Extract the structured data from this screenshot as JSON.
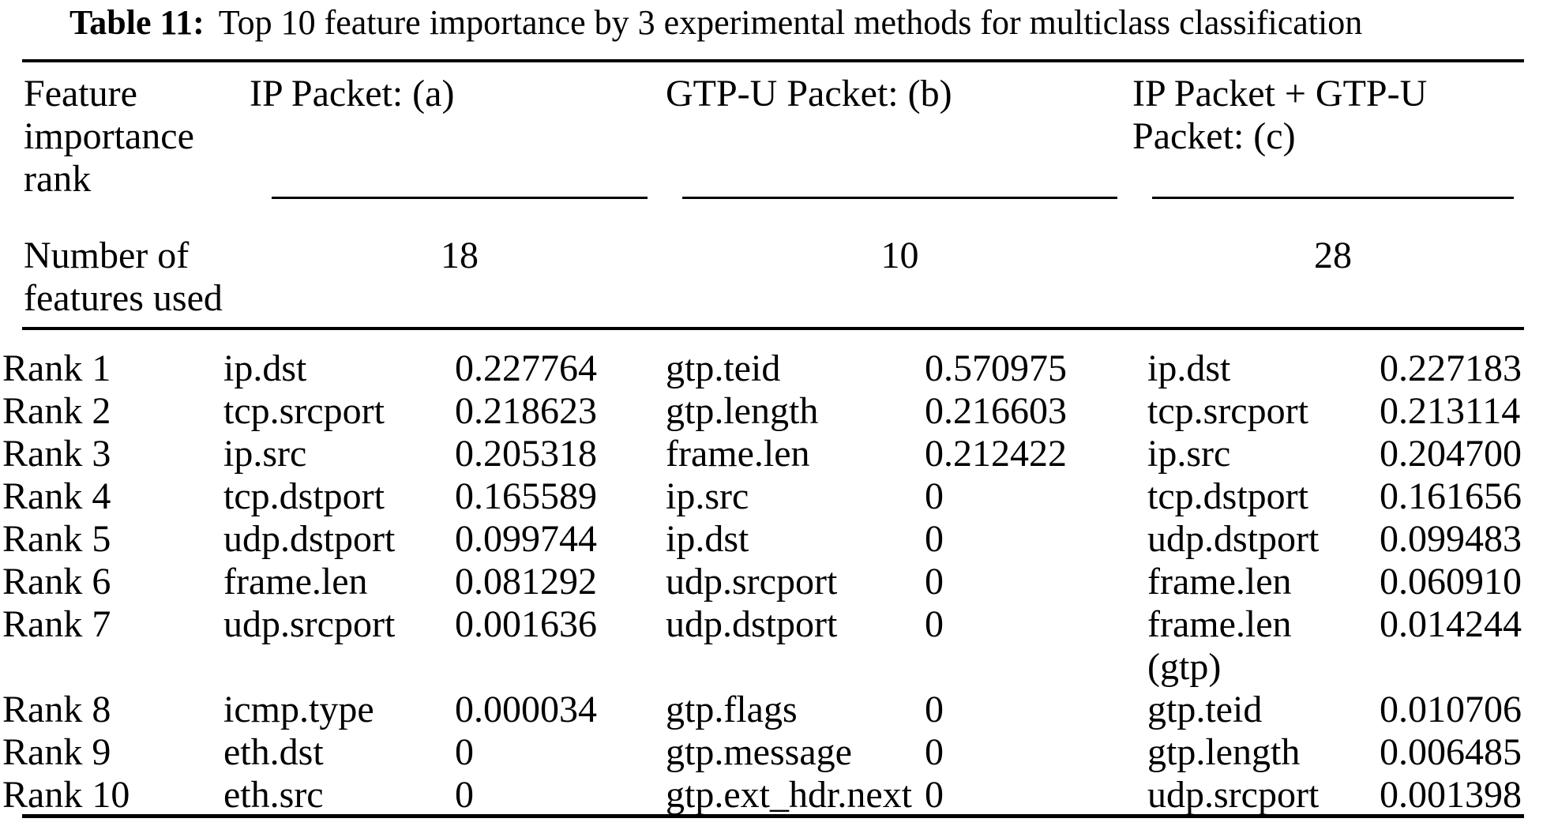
{
  "caption": {
    "label": "Table 11:",
    "text": "Top 10 feature importance by 3 experimental methods for multiclass classification"
  },
  "header": {
    "feature_rank_label": "Feature importance rank",
    "features_used_label": "Number of features used",
    "methods": [
      {
        "name": "IP Packet: (a)",
        "features_used": "18"
      },
      {
        "name": "GTP-U Packet: (b)",
        "features_used": "10"
      },
      {
        "name": "IP Packet + GTP-U Packet: (c)",
        "features_used": "28"
      }
    ]
  },
  "rows": [
    {
      "rank": "Rank 1",
      "a_feat": "ip.dst",
      "a_val": "0.227764",
      "b_feat": "gtp.teid",
      "b_val": "0.570975",
      "c_feat": "ip.dst",
      "c_val": "0.227183"
    },
    {
      "rank": "Rank 2",
      "a_feat": "tcp.srcport",
      "a_val": "0.218623",
      "b_feat": "gtp.length",
      "b_val": "0.216603",
      "c_feat": "tcp.srcport",
      "c_val": "0.213114"
    },
    {
      "rank": "Rank 3",
      "a_feat": "ip.src",
      "a_val": "0.205318",
      "b_feat": "frame.len",
      "b_val": "0.212422",
      "c_feat": "ip.src",
      "c_val": "0.204700"
    },
    {
      "rank": "Rank 4",
      "a_feat": "tcp.dstport",
      "a_val": "0.165589",
      "b_feat": "ip.src",
      "b_val": "0",
      "c_feat": "tcp.dstport",
      "c_val": "0.161656"
    },
    {
      "rank": "Rank 5",
      "a_feat": "udp.dstport",
      "a_val": "0.099744",
      "b_feat": "ip.dst",
      "b_val": "0",
      "c_feat": "udp.dstport",
      "c_val": "0.099483"
    },
    {
      "rank": "Rank 6",
      "a_feat": "frame.len",
      "a_val": "0.081292",
      "b_feat": "udp.srcport",
      "b_val": "0",
      "c_feat": "frame.len",
      "c_val": "0.060910"
    },
    {
      "rank": "Rank 7",
      "a_feat": "udp.srcport",
      "a_val": "0.001636",
      "b_feat": "udp.dstport",
      "b_val": "0",
      "c_feat": "frame.len\n(gtp)",
      "c_val": "0.014244"
    },
    {
      "rank": "Rank 8",
      "a_feat": "icmp.type",
      "a_val": "0.000034",
      "b_feat": "gtp.flags",
      "b_val": "0",
      "c_feat": "gtp.teid",
      "c_val": "0.010706"
    },
    {
      "rank": "Rank 9",
      "a_feat": "eth.dst",
      "a_val": "0",
      "b_feat": "gtp.message",
      "b_val": "0",
      "c_feat": "gtp.length",
      "c_val": "0.006485"
    },
    {
      "rank": "Rank 10",
      "a_feat": "eth.src",
      "a_val": "0",
      "b_feat": "gtp.ext_hdr.next",
      "b_val": "0",
      "c_feat": "udp.srcport",
      "c_val": "0.001398"
    }
  ]
}
